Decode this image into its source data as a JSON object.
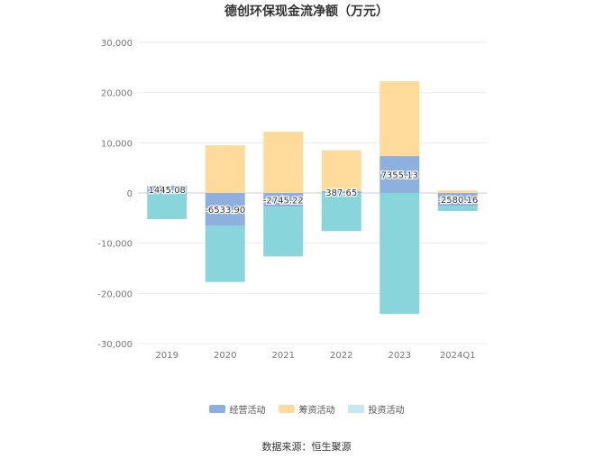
{
  "chart_data": {
    "type": "bar",
    "stacked": true,
    "title": "德创环保现金流净额（万元）",
    "categories": [
      "2019",
      "2020",
      "2021",
      "2022",
      "2023",
      "2024Q1"
    ],
    "ylim": [
      -30000,
      30000
    ],
    "yticks": [
      "30,000",
      "20,000",
      "10,000",
      "0",
      "-10,000",
      "-20,000",
      "-30,000"
    ],
    "ytick_values": [
      30000,
      20000,
      10000,
      0,
      -10000,
      -20000,
      -30000
    ],
    "grid": true,
    "legend_position": "bottom",
    "series": [
      {
        "name": "经营活动",
        "color": "#8eb0df",
        "values": [
          1445.08,
          -6533.9,
          -2745.22,
          387.65,
          7355.13,
          -2580.16
        ],
        "labels": [
          "1445.08",
          "-6533.90",
          "-2745.22",
          "387.65",
          "7355.13",
          "-2580.16"
        ]
      },
      {
        "name": "筹资活动",
        "color": "#fedb9b",
        "values": [
          0,
          9500,
          12200,
          8100,
          14900,
          500
        ]
      },
      {
        "name": "投资活动",
        "color": "#88d6dc",
        "values": [
          -5200,
          -11200,
          -9900,
          -7600,
          -24100,
          -1000
        ]
      }
    ],
    "legend_swatch_colors": [
      "#8eb0df",
      "#fedb9b",
      "#c3e9ee"
    ]
  },
  "footer": {
    "source": "数据来源：恒生聚源"
  }
}
